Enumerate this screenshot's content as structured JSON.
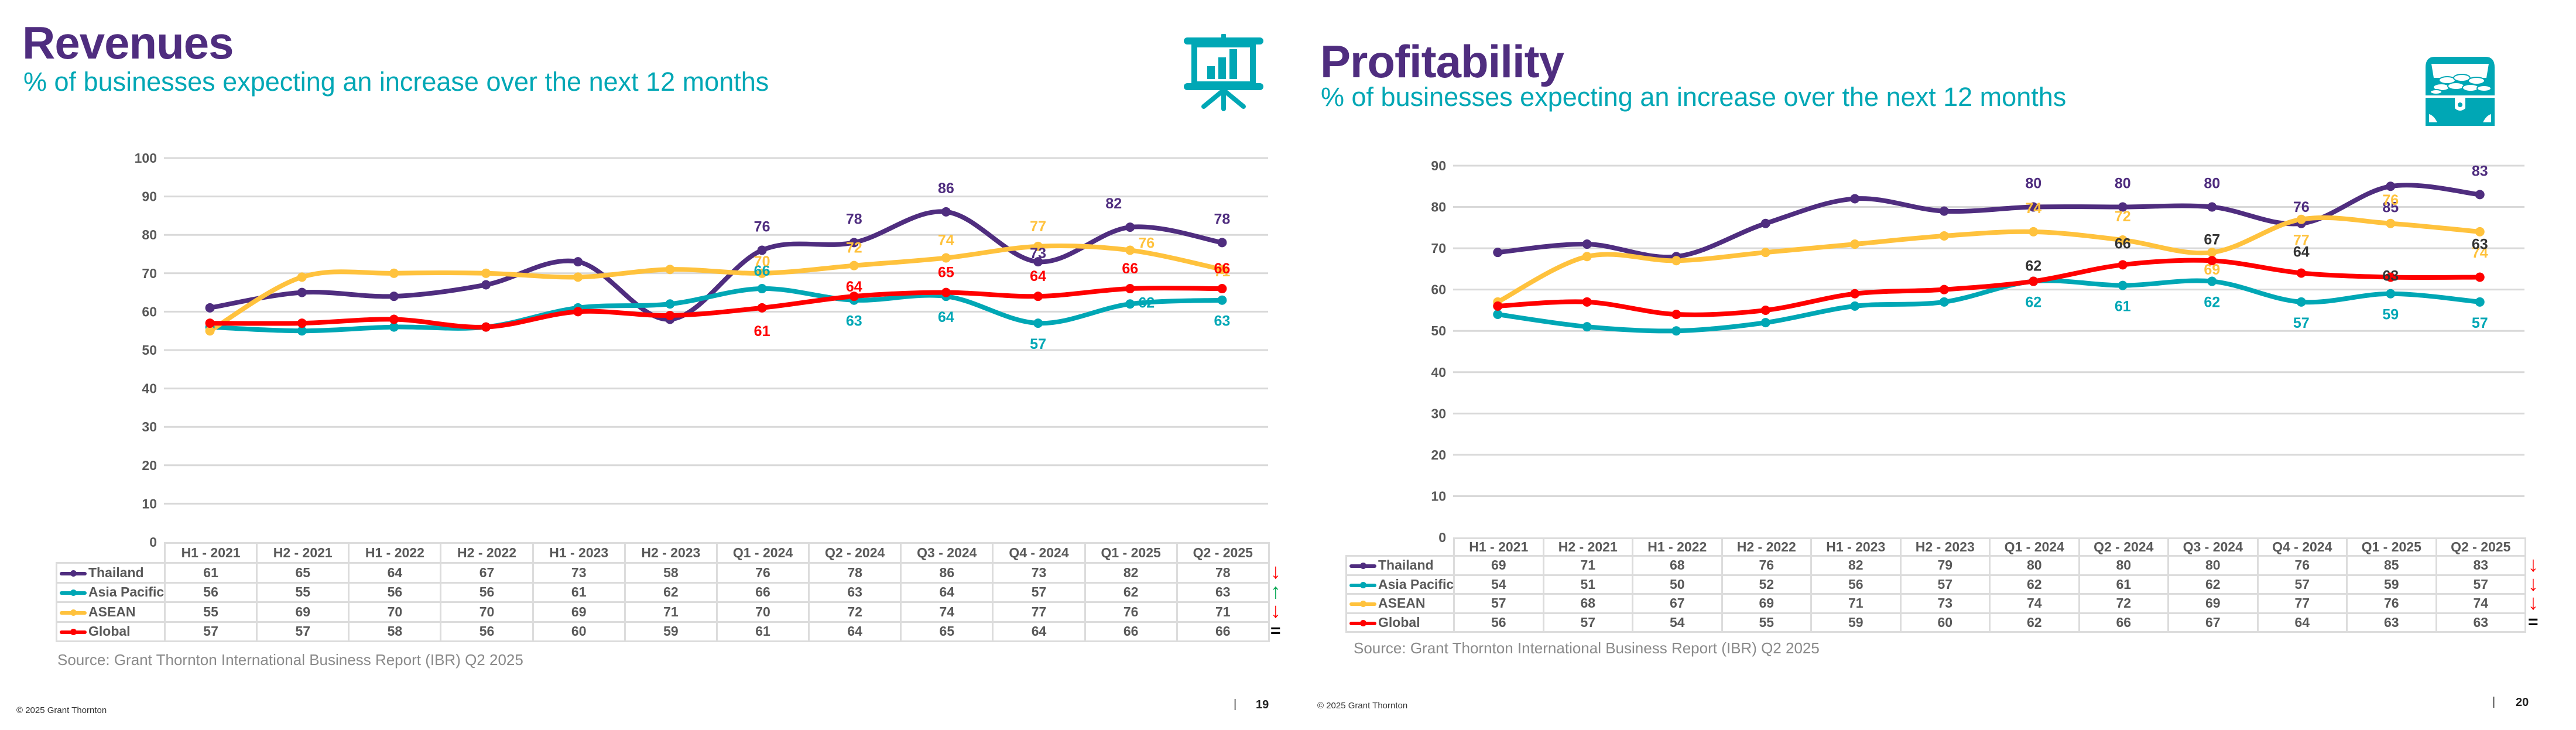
{
  "slides": [
    {
      "title": "Revenues",
      "subtitle": "% of businesses expecting an increase over the next 12 months",
      "icon": "presentation-chart-icon",
      "source": "Source: Grant Thornton International Business Report (IBR) Q2 2025",
      "copyright": "© 2025  Grant Thornton",
      "page_separator": "|",
      "page_number": "19",
      "trend_indicators": [
        {
          "series": "Thailand",
          "symbol": "↓",
          "color": "#ff0000"
        },
        {
          "series": "Asia Pacific",
          "symbol": "↑",
          "color": "#00a650"
        },
        {
          "series": "ASEAN",
          "symbol": "↓",
          "color": "#ff0000"
        },
        {
          "series": "Global",
          "symbol": "=",
          "color": "#000000"
        }
      ]
    },
    {
      "title": "Profitability",
      "subtitle": "% of businesses expecting an increase over the next 12 months",
      "icon": "treasure-chest-icon",
      "source": "Source: Grant Thornton International Business Report (IBR) Q2 2025",
      "copyright": "© 2025  Grant Thornton",
      "page_separator": "|",
      "page_number": "20",
      "trend_indicators": [
        {
          "series": "Thailand",
          "symbol": "↓",
          "color": "#ff0000"
        },
        {
          "series": "Asia Pacific",
          "symbol": "↓",
          "color": "#ff0000"
        },
        {
          "series": "ASEAN",
          "symbol": "↓",
          "color": "#ff0000"
        },
        {
          "series": "Global",
          "symbol": "=",
          "color": "#000000"
        }
      ]
    }
  ],
  "chart_data": [
    {
      "type": "line",
      "title": "Revenues",
      "subtitle": "% of businesses expecting an increase over the next 12 months",
      "categories": [
        "H1 - 2021",
        "H2 - 2021",
        "H1 - 2022",
        "H2 - 2022",
        "H1 - 2023",
        "H2 - 2023",
        "Q1 - 2024",
        "Q2 - 2024",
        "Q3 - 2024",
        "Q4 - 2024",
        "Q1 - 2025",
        "Q2 - 2025"
      ],
      "ylim": [
        0,
        100
      ],
      "yticks": [
        0,
        10,
        20,
        30,
        40,
        50,
        60,
        70,
        80,
        90,
        100
      ],
      "grid": true,
      "legend": "data-table-below",
      "labels_from_index": 6,
      "series": [
        {
          "name": "Thailand",
          "color": "#4f2d7f",
          "label_color": "#4f2d7f",
          "values": [
            61,
            65,
            64,
            67,
            73,
            58,
            76,
            78,
            86,
            73,
            82,
            78
          ]
        },
        {
          "name": "Asia Pacific",
          "color": "#00a7b5",
          "label_color": "#00a7b5",
          "values": [
            56,
            55,
            56,
            56,
            61,
            62,
            66,
            63,
            64,
            57,
            62,
            63
          ]
        },
        {
          "name": "ASEAN",
          "color": "#ffc23d",
          "label_color": "#ffc23d",
          "values": [
            55,
            69,
            70,
            70,
            69,
            71,
            70,
            72,
            74,
            77,
            76,
            71
          ]
        },
        {
          "name": "Global",
          "color": "#ff0000",
          "label_color": "#ff0000",
          "values": [
            57,
            57,
            58,
            56,
            60,
            59,
            61,
            64,
            65,
            64,
            66,
            66
          ]
        }
      ]
    },
    {
      "type": "line",
      "title": "Profitability",
      "subtitle": "% of businesses expecting an increase over the next 12 months",
      "categories": [
        "H1 - 2021",
        "H2 - 2021",
        "H1 - 2022",
        "H2 - 2022",
        "H1 - 2023",
        "H2 - 2023",
        "Q1 - 2024",
        "Q2 - 2024",
        "Q3 - 2024",
        "Q4 - 2024",
        "Q1 - 2025",
        "Q2 - 2025"
      ],
      "ylim": [
        0,
        90
      ],
      "yticks": [
        0,
        10,
        20,
        30,
        40,
        50,
        60,
        70,
        80,
        90
      ],
      "grid": true,
      "legend": "data-table-below",
      "labels_from_index": 6,
      "series": [
        {
          "name": "Thailand",
          "color": "#4f2d7f",
          "label_color": "#4f2d7f",
          "values": [
            69,
            71,
            68,
            76,
            82,
            79,
            80,
            80,
            80,
            76,
            85,
            83
          ]
        },
        {
          "name": "Asia Pacific",
          "color": "#00a7b5",
          "label_color": "#00a7b5",
          "values": [
            54,
            51,
            50,
            52,
            56,
            57,
            62,
            61,
            62,
            57,
            59,
            57
          ]
        },
        {
          "name": "ASEAN",
          "color": "#ffc23d",
          "label_color": "#ffc23d",
          "values": [
            57,
            68,
            67,
            69,
            71,
            73,
            74,
            72,
            69,
            77,
            76,
            74
          ]
        },
        {
          "name": "Global",
          "color": "#ff0000",
          "label_color": "#333333",
          "values": [
            56,
            57,
            54,
            55,
            59,
            60,
            62,
            66,
            67,
            64,
            63,
            63
          ]
        }
      ]
    }
  ]
}
